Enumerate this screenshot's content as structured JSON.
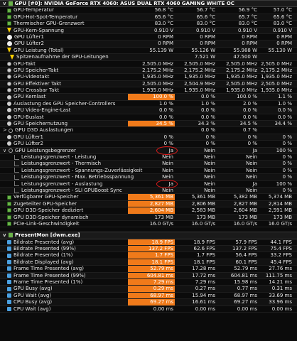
{
  "colors": {
    "highlight": "#f07a1a",
    "annotation": "#e01b1b",
    "background": "#0b0b0b"
  },
  "gpu_section": {
    "title": "GPU [#0]: NVIDIA GeForce RTX 4060: ASUS DUAL RTX 4060 GAMING WHITE OC",
    "rows": [
      {
        "label": "GPU-Temperatur",
        "icon": "chip",
        "v": [
          "56.8 °C",
          "56.7 °C",
          "56.9 °C",
          "57.0 °C"
        ]
      },
      {
        "label": "GPU-Hot-Spot-Temperatur",
        "icon": "chip",
        "v": [
          "65.6 °C",
          "65.6 °C",
          "65.7 °C",
          "65.6 °C"
        ]
      },
      {
        "label": "Thermischer GPU-Grenzwert",
        "icon": "chip",
        "v": [
          "83.0 °C",
          "83.0 °C",
          "83.0 °C",
          "83.0 °C"
        ]
      },
      {
        "label": "GPU-Kern-Spannung",
        "icon": "bolt",
        "v": [
          "0.910 V",
          "0.910 V",
          "0.910 V",
          "0.910 V"
        ]
      },
      {
        "label": "GPU Lüfter1",
        "icon": "fan",
        "v": [
          "0 RPM",
          "0 RPM",
          "0 RPM",
          "0 RPM"
        ]
      },
      {
        "label": "GPU Lüfter2",
        "icon": "fan",
        "v": [
          "0 RPM",
          "0 RPM",
          "0 RPM",
          "0 RPM"
        ]
      },
      {
        "label": "GPU Leistung (Total)",
        "icon": "bolt",
        "v": [
          "55.139 W",
          "55.126 W",
          "55.988 W",
          "55.130 W"
        ]
      },
      {
        "label": "Spitzenaufnahme der GPU-Leitungen",
        "icon": "bolt",
        "indent": true,
        "v": [
          "",
          "7.521 W",
          "47.500 W",
          ""
        ]
      },
      {
        "label": "GPU-Takt",
        "icon": "clock",
        "v": [
          "2,505.0 MHz",
          "2,505.0 MHz",
          "2,505.0 MHz",
          "2,505.0 MHz"
        ]
      },
      {
        "label": "GPU Speicher-Takt",
        "icon": "clock",
        "v": [
          "2,175.2 MHz",
          "2,175.2 MHz",
          "2,175.2 MHz",
          "2,175.2 MHz"
        ]
      },
      {
        "label": "GPU-Videotakt",
        "icon": "clock",
        "v": [
          "1,935.0 MHz",
          "1,935.0 MHz",
          "1,935.0 MHz",
          "1,935.0 MHz"
        ]
      },
      {
        "label": "GPU Effektiver Takt",
        "icon": "clock",
        "v": [
          "2,505.0 MHz",
          "2,504.9 MHz",
          "2,505.0 MHz",
          "2,505.0 MHz"
        ]
      },
      {
        "label": "GPU Crossbar Takt",
        "icon": "clock",
        "v": [
          "1,935.0 MHz",
          "1,935.0 MHz",
          "1,935.0 MHz",
          "1,935.0 MHz"
        ]
      },
      {
        "label": "GPU Kernlast",
        "icon": "circg",
        "hl": true,
        "v": [
          "100.0 %",
          "0.0 %",
          "100.0 %",
          "1.1 %"
        ]
      },
      {
        "label": "Auslastung des GPU Speicher-Controllers",
        "icon": "circg",
        "v": [
          "1.0 %",
          "1.0 %",
          "2.0 %",
          "1.0 %"
        ]
      },
      {
        "label": "GPU Video-Engine-Last",
        "icon": "circg",
        "v": [
          "0.0 %",
          "0.0 %",
          "0.0 %",
          "0.0 %"
        ]
      },
      {
        "label": "GPU-Buslast",
        "icon": "circg",
        "v": [
          "0.0 %",
          "0.0 %",
          "0.0 %",
          "0.0 %"
        ]
      },
      {
        "label": "GPU Speichernutzung",
        "icon": "circg",
        "hl": true,
        "v": [
          "34.5 %",
          "34.3 %",
          "34.5 %",
          "34.4 %"
        ]
      },
      {
        "label": "GPU D3D Auslastungen",
        "icon": "circ",
        "chev": ">",
        "v": [
          "",
          "0.0 %",
          "0.7 %",
          ""
        ]
      },
      {
        "label": "GPU Lüfter1",
        "icon": "circg",
        "v": [
          "0 %",
          "0 %",
          "0 %",
          "0 %"
        ]
      },
      {
        "label": "GPU Lüfter2",
        "icon": "circg",
        "v": [
          "0 %",
          "0 %",
          "0 %",
          "0 %"
        ]
      },
      {
        "label": "GPU Leistungsbegrenzer",
        "icon": "circ",
        "chev": "v",
        "v": [
          "Ja",
          "Nein",
          "Ja",
          "100 %"
        ]
      },
      {
        "label": "Leistungsgrenzwert - Leistung",
        "icon": "tree",
        "v": [
          "Nein",
          "Nein",
          "Nein",
          "0 %"
        ]
      },
      {
        "label": "Leistungsgrenzwert - Thermisch",
        "icon": "tree",
        "v": [
          "Nein",
          "Nein",
          "Nein",
          "0 %"
        ]
      },
      {
        "label": "Leistungsgrenzwert - Spannungs-Zuverlässigkeit",
        "icon": "tree",
        "v": [
          "Nein",
          "Nein",
          "Nein",
          "0 %"
        ]
      },
      {
        "label": "Leistungsgrenzwert - Max. Betriebsspannung",
        "icon": "tree",
        "v": [
          "Nein",
          "Nein",
          "Nein",
          "0 %"
        ]
      },
      {
        "label": "Leistungsgrenzwert - Auslastung",
        "icon": "tree",
        "v": [
          "Ja",
          "Nein",
          "Ja",
          "100 %"
        ]
      },
      {
        "label": "Leistungsgrenzwert - SLI GPUBoost Sync",
        "icon": "tree",
        "v": [
          "Nein",
          "Nein",
          "Nein",
          "0 %"
        ]
      },
      {
        "label": "Verfügbarer GPU-Speicher",
        "icon": "chip",
        "hl": true,
        "v": [
          "5,361 MB",
          "5,361 MB",
          "5,382 MB",
          "5,374 MB"
        ]
      },
      {
        "label": "Zugeteilter GPU-Speicher",
        "icon": "chip",
        "hl": true,
        "v": [
          "2,827 MB",
          "2,806 MB",
          "2,827 MB",
          "2,814 MB"
        ]
      },
      {
        "label": "GPU D3D-Speicher dediziert",
        "icon": "chip",
        "hl": true,
        "v": [
          "2,604 MB",
          "2,583 MB",
          "2,604 MB",
          "2,591 MB"
        ]
      },
      {
        "label": "GPU D3D-Speicher dynamisch",
        "icon": "chip",
        "v": [
          "173 MB",
          "173 MB",
          "173 MB",
          "173 MB"
        ]
      },
      {
        "label": "PCIe-Link-Geschwindigkeit",
        "icon": "chip",
        "v": [
          "16.0 GT/s",
          "16.0 GT/s",
          "16.0 GT/s",
          "16.0 GT/s"
        ]
      }
    ]
  },
  "presentmon_section": {
    "title": "PresentMon [dwm.exe]",
    "rows": [
      {
        "label": "Bildrate Presented (avg)",
        "icon": "bar",
        "hl": true,
        "v": [
          "18.9 FPS",
          "18.9 FPS",
          "57.9 FPS",
          "44.1 FPS"
        ]
      },
      {
        "label": "Bildrate Presented (99%)",
        "icon": "bar",
        "hl": true,
        "v": [
          "137.2 FPS",
          "62.6 FPS",
          "137.2 FPS",
          "75.4 FPS"
        ]
      },
      {
        "label": "Bildrate Presented (1%)",
        "icon": "bar",
        "hl": true,
        "v": [
          "1.7 FPS",
          "1.7 FPS",
          "56.4 FPS",
          "33.2 FPS"
        ]
      },
      {
        "label": "Bildrate Displayed (avg)",
        "icon": "bar",
        "hl": true,
        "v": [
          "18.1 FPS",
          "18.1 FPS",
          "60.1 FPS",
          "45.4 FPS"
        ]
      },
      {
        "label": "Frame Time Presented (avg)",
        "icon": "bar",
        "hl": true,
        "v": [
          "52.79 ms",
          "17.28 ms",
          "52.79 ms",
          "27.76 ms"
        ]
      },
      {
        "label": "Frame Time Presented (99%)",
        "icon": "bar",
        "hl": true,
        "v": [
          "604.81 ms",
          "17.72 ms",
          "604.81 ms",
          "111.75 ms"
        ]
      },
      {
        "label": "Frame Time Presented (1%)",
        "icon": "bar",
        "hl": true,
        "v": [
          "7.29 ms",
          "7.29 ms",
          "15.98 ms",
          "14.21 ms"
        ]
      },
      {
        "label": "GPU Busy (avg)",
        "icon": "bar",
        "hl": true,
        "v": [
          "0.29 ms",
          "0.27 ms",
          "0.77 ms",
          "0.31 ms"
        ]
      },
      {
        "label": "GPU Wait (avg)",
        "icon": "bar",
        "hl": true,
        "v": [
          "68.97 ms",
          "15.94 ms",
          "68.97 ms",
          "33.69 ms"
        ]
      },
      {
        "label": "CPU Busy (avg)",
        "icon": "bar",
        "hl": true,
        "v": [
          "69.27 ms",
          "16.61 ms",
          "69.27 ms",
          "33.96 ms"
        ]
      },
      {
        "label": "CPU Wait (avg)",
        "icon": "bar",
        "v": [
          "0.00 ms",
          "0.00 ms",
          "0.00 ms",
          "0.00 ms"
        ]
      }
    ]
  }
}
